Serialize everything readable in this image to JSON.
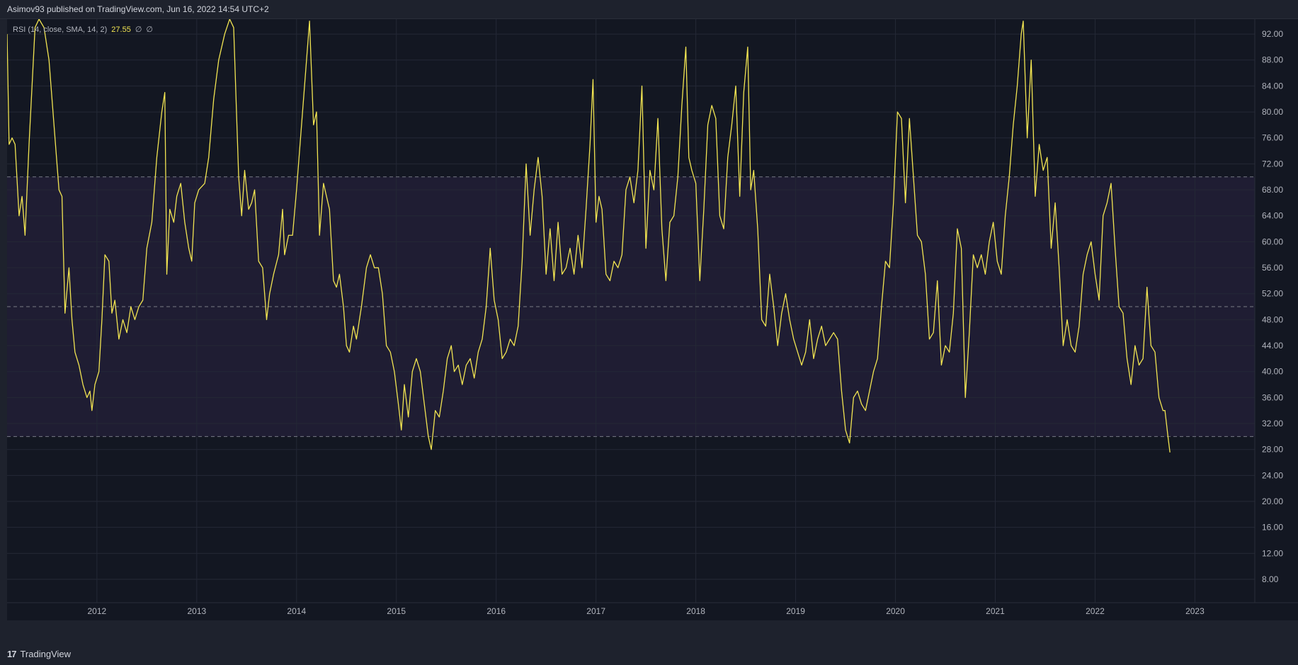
{
  "header": {
    "published": "Asimov93 published on TradingView.com, Jun 16, 2022 14:54 UTC+2"
  },
  "legend": {
    "name": "RSI (14, close, SMA, 14, 2)",
    "value": "27.55",
    "extra1": "∅",
    "extra2": "∅"
  },
  "footer": {
    "logo": "17",
    "brand": "TradingView"
  },
  "colors": {
    "background": "#131722",
    "band": "#1f1d33",
    "line": "#f2e552",
    "grid": "#242836",
    "dashed": "#787b86"
  },
  "chart_data": {
    "type": "line",
    "title": "",
    "xlabel": "",
    "ylabel": "",
    "xlim": [
      2011.1,
      2023.6
    ],
    "ylim": [
      4.4,
      94.3
    ],
    "y_ticks": [
      "92.00",
      "88.00",
      "84.00",
      "80.00",
      "76.00",
      "72.00",
      "68.00",
      "64.00",
      "60.00",
      "56.00",
      "52.00",
      "48.00",
      "44.00",
      "40.00",
      "36.00",
      "32.00",
      "28.00",
      "24.00",
      "20.00",
      "16.00",
      "12.00",
      "8.00"
    ],
    "x_ticks": [
      "2012",
      "2013",
      "2014",
      "2015",
      "2016",
      "2017",
      "2018",
      "2019",
      "2020",
      "2021",
      "2022",
      "2023"
    ],
    "bands": {
      "upper": 70,
      "middle": 50,
      "lower": 30
    },
    "grid": true,
    "series": [
      {
        "name": "",
        "points": [
          [
            2011.1,
            92
          ],
          [
            2011.12,
            75
          ],
          [
            2011.15,
            76
          ],
          [
            2011.18,
            75
          ],
          [
            2011.22,
            64
          ],
          [
            2011.25,
            67
          ],
          [
            2011.28,
            61
          ],
          [
            2011.32,
            75
          ],
          [
            2011.38,
            93
          ],
          [
            2011.42,
            95
          ],
          [
            2011.47,
            93
          ],
          [
            2011.52,
            88
          ],
          [
            2011.57,
            78
          ],
          [
            2011.62,
            68
          ],
          [
            2011.65,
            67
          ],
          [
            2011.68,
            49
          ],
          [
            2011.72,
            56
          ],
          [
            2011.75,
            48
          ],
          [
            2011.78,
            43
          ],
          [
            2011.82,
            41
          ],
          [
            2011.86,
            38
          ],
          [
            2011.9,
            36
          ],
          [
            2011.93,
            37
          ],
          [
            2011.95,
            34
          ],
          [
            2011.98,
            38
          ],
          [
            2012.02,
            40
          ],
          [
            2012.05,
            48
          ],
          [
            2012.08,
            58
          ],
          [
            2012.12,
            57
          ],
          [
            2012.15,
            49
          ],
          [
            2012.18,
            51
          ],
          [
            2012.22,
            45
          ],
          [
            2012.26,
            48
          ],
          [
            2012.3,
            46
          ],
          [
            2012.34,
            50
          ],
          [
            2012.38,
            48
          ],
          [
            2012.42,
            50
          ],
          [
            2012.46,
            51
          ],
          [
            2012.5,
            59
          ],
          [
            2012.55,
            63
          ],
          [
            2012.6,
            73
          ],
          [
            2012.65,
            80
          ],
          [
            2012.68,
            83
          ],
          [
            2012.7,
            55
          ],
          [
            2012.73,
            65
          ],
          [
            2012.77,
            63
          ],
          [
            2012.8,
            67
          ],
          [
            2012.84,
            69
          ],
          [
            2012.88,
            63
          ],
          [
            2012.92,
            59
          ],
          [
            2012.95,
            57
          ],
          [
            2012.98,
            66
          ],
          [
            2013.02,
            68
          ],
          [
            2013.08,
            69
          ],
          [
            2013.12,
            73
          ],
          [
            2013.17,
            82
          ],
          [
            2013.22,
            88
          ],
          [
            2013.28,
            92
          ],
          [
            2013.33,
            95
          ],
          [
            2013.37,
            93
          ],
          [
            2013.42,
            70
          ],
          [
            2013.45,
            64
          ],
          [
            2013.48,
            71
          ],
          [
            2013.52,
            65
          ],
          [
            2013.55,
            66
          ],
          [
            2013.58,
            68
          ],
          [
            2013.62,
            57
          ],
          [
            2013.66,
            56
          ],
          [
            2013.7,
            48
          ],
          [
            2013.73,
            52
          ],
          [
            2013.77,
            55
          ],
          [
            2013.82,
            58
          ],
          [
            2013.86,
            65
          ],
          [
            2013.88,
            58
          ],
          [
            2013.92,
            61
          ],
          [
            2013.96,
            61
          ],
          [
            2014.0,
            68
          ],
          [
            2014.05,
            78
          ],
          [
            2014.1,
            88
          ],
          [
            2014.13,
            94
          ],
          [
            2014.17,
            78
          ],
          [
            2014.2,
            80
          ],
          [
            2014.23,
            61
          ],
          [
            2014.27,
            69
          ],
          [
            2014.3,
            67
          ],
          [
            2014.33,
            65
          ],
          [
            2014.37,
            54
          ],
          [
            2014.4,
            53
          ],
          [
            2014.43,
            55
          ],
          [
            2014.47,
            50
          ],
          [
            2014.5,
            44
          ],
          [
            2014.53,
            43
          ],
          [
            2014.57,
            47
          ],
          [
            2014.6,
            45
          ],
          [
            2014.65,
            50
          ],
          [
            2014.7,
            56
          ],
          [
            2014.74,
            58
          ],
          [
            2014.78,
            56
          ],
          [
            2014.82,
            56
          ],
          [
            2014.86,
            52
          ],
          [
            2014.9,
            44
          ],
          [
            2014.94,
            43
          ],
          [
            2014.98,
            40
          ],
          [
            2015.02,
            35
          ],
          [
            2015.05,
            31
          ],
          [
            2015.08,
            38
          ],
          [
            2015.12,
            33
          ],
          [
            2015.16,
            40
          ],
          [
            2015.2,
            42
          ],
          [
            2015.24,
            40
          ],
          [
            2015.28,
            35
          ],
          [
            2015.32,
            30
          ],
          [
            2015.35,
            28
          ],
          [
            2015.39,
            34
          ],
          [
            2015.43,
            33
          ],
          [
            2015.47,
            37
          ],
          [
            2015.51,
            42
          ],
          [
            2015.55,
            44
          ],
          [
            2015.58,
            40
          ],
          [
            2015.62,
            41
          ],
          [
            2015.66,
            38
          ],
          [
            2015.7,
            41
          ],
          [
            2015.74,
            42
          ],
          [
            2015.78,
            39
          ],
          [
            2015.82,
            43
          ],
          [
            2015.86,
            45
          ],
          [
            2015.9,
            50
          ],
          [
            2015.94,
            59
          ],
          [
            2015.98,
            51
          ],
          [
            2016.02,
            48
          ],
          [
            2016.06,
            42
          ],
          [
            2016.1,
            43
          ],
          [
            2016.14,
            45
          ],
          [
            2016.18,
            44
          ],
          [
            2016.22,
            47
          ],
          [
            2016.26,
            57
          ],
          [
            2016.3,
            72
          ],
          [
            2016.34,
            61
          ],
          [
            2016.38,
            68
          ],
          [
            2016.42,
            73
          ],
          [
            2016.46,
            67
          ],
          [
            2016.5,
            55
          ],
          [
            2016.54,
            62
          ],
          [
            2016.58,
            54
          ],
          [
            2016.62,
            63
          ],
          [
            2016.66,
            55
          ],
          [
            2016.7,
            56
          ],
          [
            2016.74,
            59
          ],
          [
            2016.78,
            55
          ],
          [
            2016.82,
            61
          ],
          [
            2016.86,
            56
          ],
          [
            2016.9,
            65
          ],
          [
            2016.94,
            75
          ],
          [
            2016.97,
            85
          ],
          [
            2017.0,
            63
          ],
          [
            2017.03,
            67
          ],
          [
            2017.06,
            65
          ],
          [
            2017.1,
            55
          ],
          [
            2017.14,
            54
          ],
          [
            2017.18,
            57
          ],
          [
            2017.22,
            56
          ],
          [
            2017.26,
            58
          ],
          [
            2017.3,
            68
          ],
          [
            2017.34,
            70
          ],
          [
            2017.38,
            66
          ],
          [
            2017.42,
            71
          ],
          [
            2017.46,
            84
          ],
          [
            2017.5,
            59
          ],
          [
            2017.54,
            71
          ],
          [
            2017.58,
            68
          ],
          [
            2017.62,
            79
          ],
          [
            2017.66,
            62
          ],
          [
            2017.7,
            54
          ],
          [
            2017.74,
            63
          ],
          [
            2017.78,
            64
          ],
          [
            2017.82,
            70
          ],
          [
            2017.86,
            81
          ],
          [
            2017.9,
            90
          ],
          [
            2017.93,
            73
          ],
          [
            2017.96,
            71
          ],
          [
            2018.0,
            69
          ],
          [
            2018.04,
            54
          ],
          [
            2018.08,
            65
          ],
          [
            2018.12,
            78
          ],
          [
            2018.16,
            81
          ],
          [
            2018.2,
            79
          ],
          [
            2018.24,
            64
          ],
          [
            2018.28,
            62
          ],
          [
            2018.32,
            73
          ],
          [
            2018.36,
            78
          ],
          [
            2018.4,
            84
          ],
          [
            2018.44,
            67
          ],
          [
            2018.48,
            83
          ],
          [
            2018.52,
            90
          ],
          [
            2018.55,
            68
          ],
          [
            2018.58,
            71
          ],
          [
            2018.62,
            62
          ],
          [
            2018.66,
            48
          ],
          [
            2018.7,
            47
          ],
          [
            2018.74,
            55
          ],
          [
            2018.78,
            50
          ],
          [
            2018.82,
            44
          ],
          [
            2018.86,
            49
          ],
          [
            2018.9,
            52
          ],
          [
            2018.94,
            48
          ],
          [
            2018.98,
            45
          ],
          [
            2019.02,
            43
          ],
          [
            2019.06,
            41
          ],
          [
            2019.1,
            43
          ],
          [
            2019.14,
            48
          ],
          [
            2019.18,
            42
          ],
          [
            2019.22,
            45
          ],
          [
            2019.26,
            47
          ],
          [
            2019.3,
            44
          ],
          [
            2019.34,
            45
          ],
          [
            2019.38,
            46
          ],
          [
            2019.42,
            45
          ],
          [
            2019.46,
            37
          ],
          [
            2019.5,
            31
          ],
          [
            2019.54,
            29
          ],
          [
            2019.58,
            36
          ],
          [
            2019.62,
            37
          ],
          [
            2019.66,
            35
          ],
          [
            2019.7,
            34
          ],
          [
            2019.74,
            37
          ],
          [
            2019.78,
            40
          ],
          [
            2019.82,
            42
          ],
          [
            2019.86,
            50
          ],
          [
            2019.9,
            57
          ],
          [
            2019.94,
            56
          ],
          [
            2019.98,
            66
          ],
          [
            2020.02,
            80
          ],
          [
            2020.06,
            79
          ],
          [
            2020.1,
            66
          ],
          [
            2020.14,
            79
          ],
          [
            2020.18,
            70
          ],
          [
            2020.22,
            61
          ],
          [
            2020.26,
            60
          ],
          [
            2020.3,
            55
          ],
          [
            2020.34,
            45
          ],
          [
            2020.38,
            46
          ],
          [
            2020.42,
            54
          ],
          [
            2020.46,
            41
          ],
          [
            2020.5,
            44
          ],
          [
            2020.54,
            43
          ],
          [
            2020.58,
            49
          ],
          [
            2020.62,
            62
          ],
          [
            2020.66,
            59
          ],
          [
            2020.7,
            36
          ],
          [
            2020.74,
            46
          ],
          [
            2020.78,
            58
          ],
          [
            2020.82,
            56
          ],
          [
            2020.86,
            58
          ],
          [
            2020.9,
            55
          ],
          [
            2020.94,
            60
          ],
          [
            2020.98,
            63
          ],
          [
            2021.02,
            57
          ],
          [
            2021.06,
            55
          ],
          [
            2021.1,
            64
          ],
          [
            2021.14,
            70
          ],
          [
            2021.18,
            78
          ],
          [
            2021.22,
            84
          ],
          [
            2021.26,
            92
          ],
          [
            2021.28,
            94
          ],
          [
            2021.32,
            76
          ],
          [
            2021.36,
            88
          ],
          [
            2021.4,
            67
          ],
          [
            2021.44,
            75
          ],
          [
            2021.48,
            71
          ],
          [
            2021.52,
            73
          ],
          [
            2021.56,
            59
          ],
          [
            2021.6,
            66
          ],
          [
            2021.64,
            56
          ],
          [
            2021.68,
            44
          ],
          [
            2021.72,
            48
          ],
          [
            2021.76,
            44
          ],
          [
            2021.8,
            43
          ],
          [
            2021.84,
            47
          ],
          [
            2021.88,
            55
          ],
          [
            2021.92,
            58
          ],
          [
            2021.96,
            60
          ],
          [
            2022.0,
            55
          ],
          [
            2022.04,
            51
          ],
          [
            2022.08,
            64
          ],
          [
            2022.12,
            66
          ],
          [
            2022.16,
            69
          ],
          [
            2022.2,
            59
          ],
          [
            2022.24,
            50
          ],
          [
            2022.28,
            49
          ],
          [
            2022.32,
            42
          ],
          [
            2022.36,
            38
          ],
          [
            2022.4,
            44
          ],
          [
            2022.44,
            41
          ],
          [
            2022.48,
            42
          ],
          [
            2022.52,
            53
          ],
          [
            2022.56,
            44
          ],
          [
            2022.6,
            43
          ],
          [
            2022.64,
            36
          ],
          [
            2022.68,
            34
          ],
          [
            2022.7,
            34
          ],
          [
            2022.73,
            30
          ],
          [
            2022.75,
            27.55
          ]
        ]
      }
    ]
  }
}
